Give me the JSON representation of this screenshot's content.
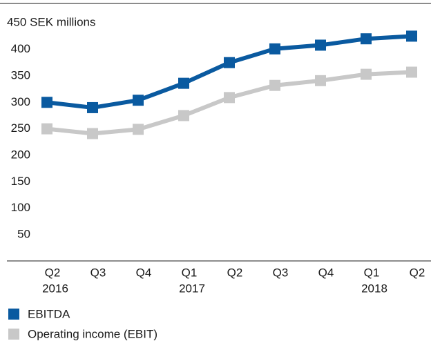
{
  "chart_data": {
    "type": "line",
    "categories": [
      "Q2",
      "Q3",
      "Q4",
      "Q1",
      "Q2",
      "Q3",
      "Q4",
      "Q1",
      "Q2"
    ],
    "category_years": [
      "2016",
      null,
      null,
      "2017",
      null,
      null,
      null,
      "2018",
      null
    ],
    "series": [
      {
        "name": "EBITDA",
        "color": "#0a5aa0",
        "values": [
          300,
          290,
          304,
          336,
          375,
          401,
          408,
          420,
          425
        ]
      },
      {
        "name": "Operating income (EBIT)",
        "color": "#c8c8c8",
        "values": [
          250,
          241,
          249,
          275,
          309,
          332,
          341,
          353,
          357
        ]
      }
    ],
    "ylim": [
      0,
      450
    ],
    "yticks": [
      50,
      100,
      150,
      200,
      250,
      300,
      350,
      400,
      {
        "value": 450,
        "label": "450 SEK millions"
      }
    ],
    "grid": false,
    "legend": "bottom-left"
  }
}
